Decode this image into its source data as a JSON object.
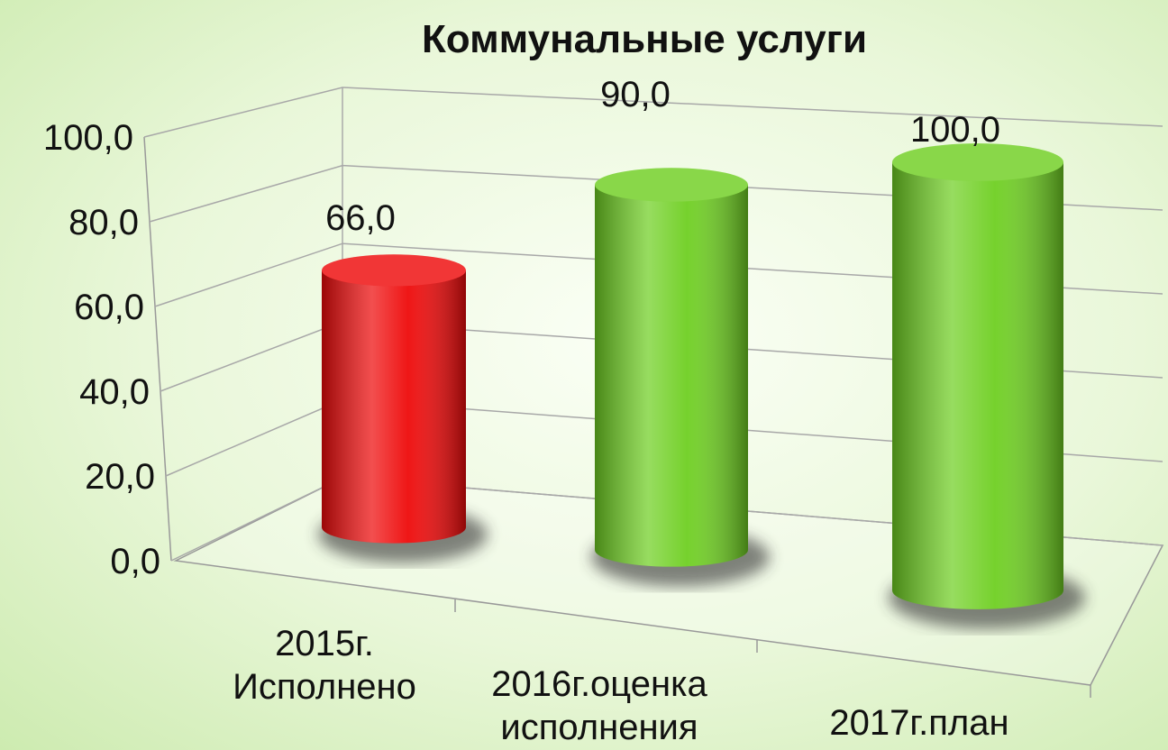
{
  "chart_data": {
    "type": "bar3d",
    "title": "Коммунальные услуги",
    "categories": [
      "2015г. Исполнено",
      "2016г.оценка исполнения",
      "2017г.план"
    ],
    "values": [
      66,
      90,
      100
    ],
    "value_labels": [
      "66,0",
      "90,0",
      "100,0"
    ],
    "colors": [
      "#ee0a0a",
      "#6fcf22",
      "#6fcf22"
    ],
    "ylim": [
      0,
      100
    ],
    "yticks": [
      {
        "value": 0,
        "label": "0,0"
      },
      {
        "value": 20,
        "label": "20,0"
      },
      {
        "value": 40,
        "label": "40,0"
      },
      {
        "value": 60,
        "label": "60,0"
      },
      {
        "value": 80,
        "label": "80,0"
      },
      {
        "value": 100,
        "label": "100,0"
      }
    ],
    "grid": true
  }
}
